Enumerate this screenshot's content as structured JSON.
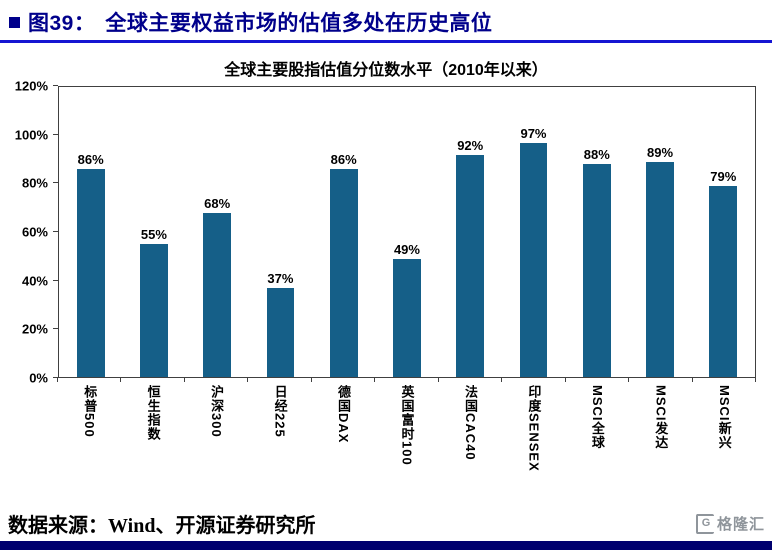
{
  "header": {
    "figure_label": "图39：",
    "title": "全球主要权益市场的估值多处在历史高位",
    "text_color": "#00008b",
    "underline_color": "#1515d2"
  },
  "chart_data": {
    "type": "bar",
    "title": "全球主要股指估值分位数水平（2010年以来）",
    "categories": [
      "标普500",
      "恒生指数",
      "沪深300",
      "日经225",
      "德国DAX",
      "英国富时100",
      "法国CAC40",
      "印度SENSEX",
      "MSCI全球",
      "MSCI发达",
      "MSCI新兴"
    ],
    "values": [
      86,
      55,
      68,
      37,
      86,
      49,
      92,
      97,
      88,
      89,
      79
    ],
    "value_labels": [
      "86%",
      "55%",
      "68%",
      "37%",
      "86%",
      "49%",
      "92%",
      "97%",
      "88%",
      "89%",
      "79%"
    ],
    "ylabel": "",
    "xlabel": "",
    "ylim": [
      0,
      120
    ],
    "ytick_step": 20,
    "ytick_labels": [
      "0%",
      "20%",
      "40%",
      "60%",
      "80%",
      "100%",
      "120%"
    ],
    "bar_color": "#155f88",
    "grid": false,
    "legend": "none"
  },
  "footer": {
    "source": "数据来源：Wind、开源证券研究所",
    "logo_icon": "G",
    "logo_text": "格隆汇",
    "logo_color": "#8f959b",
    "bottom_bar_color": "#00006e"
  }
}
